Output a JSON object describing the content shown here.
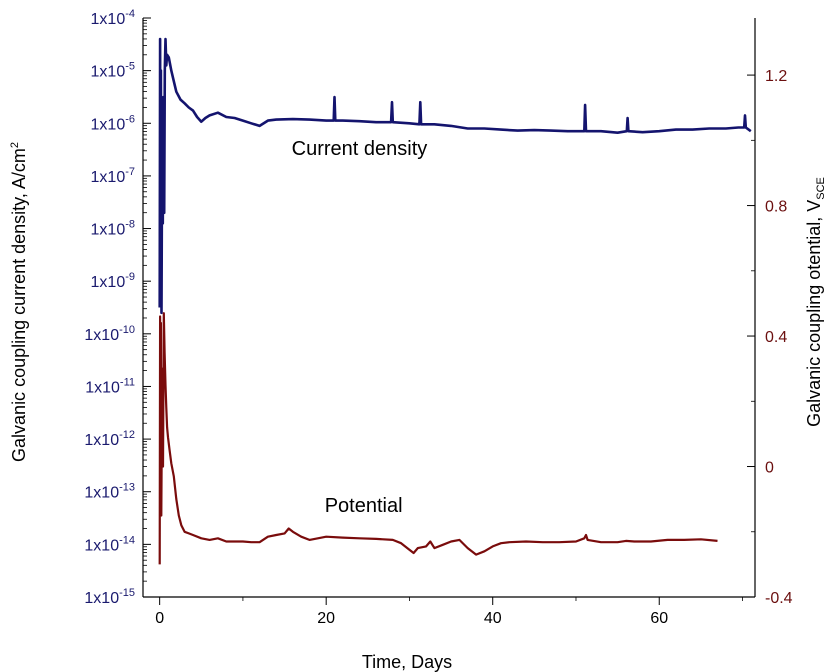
{
  "colors": {
    "current": "#14146e",
    "potential": "#7a0c0c",
    "axis": "#000000",
    "left_axis_text": "#1a1a6e",
    "right_axis_text": "#6b0f0f"
  },
  "chart_data": {
    "type": "line",
    "title": "",
    "xlabel": "Time, Days",
    "ylabel_left": {
      "main": "Galvanic coupling current density, A/cm",
      "sup": "2"
    },
    "ylabel_right": {
      "main": "Galvanic coupling otential, V",
      "sub": "SCE"
    },
    "xlim": [
      -2,
      71.5
    ],
    "x_ticks": [
      0,
      20,
      40,
      60
    ],
    "x_tick_labels": [
      "0",
      "20",
      "40",
      "60"
    ],
    "y_left_scale": "log",
    "y_left_lim_exp": [
      -15,
      -4
    ],
    "y_left_tick_exponents": [
      -4,
      -5,
      -6,
      -7,
      -8,
      -9,
      -10,
      -11,
      -12,
      -13,
      -14,
      -15
    ],
    "y_left_tick_base": "1x10",
    "y_right_lim": [
      -0.4,
      1.375
    ],
    "y_right_ticks": [
      1.2,
      0.8,
      0.4,
      0,
      -0.4
    ],
    "y_right_tick_labels": [
      "1.2",
      "0.8",
      "0.4",
      "0",
      "-0.4"
    ],
    "grid": false,
    "annotations": [
      {
        "text": "Current density",
        "x": 24,
        "y_exp": -6.6,
        "axis": "left"
      },
      {
        "text": "Potential",
        "x": 24.5,
        "y": -0.14,
        "axis": "right"
      }
    ],
    "series": [
      {
        "axis": "left",
        "units": "log10 of current density (A/cm2)",
        "points": [
          [
            0.0,
            -9.5
          ],
          [
            0.05,
            -4.4
          ],
          [
            0.1,
            -8.0
          ],
          [
            0.15,
            -5.0
          ],
          [
            0.22,
            -9.6
          ],
          [
            0.3,
            -6.0
          ],
          [
            0.38,
            -7.9
          ],
          [
            0.45,
            -5.5
          ],
          [
            0.55,
            -7.7
          ],
          [
            0.62,
            -5.0
          ],
          [
            0.7,
            -4.4
          ],
          [
            0.8,
            -4.9
          ],
          [
            0.9,
            -4.7
          ],
          [
            1.1,
            -4.75
          ],
          [
            1.4,
            -5.0
          ],
          [
            1.7,
            -5.2
          ],
          [
            2.0,
            -5.4
          ],
          [
            2.5,
            -5.55
          ],
          [
            3.0,
            -5.62
          ],
          [
            3.5,
            -5.7
          ],
          [
            4.0,
            -5.76
          ],
          [
            4.5,
            -5.88
          ],
          [
            5.0,
            -5.97
          ],
          [
            5.5,
            -5.9
          ],
          [
            6.0,
            -5.85
          ],
          [
            7.0,
            -5.8
          ],
          [
            8.0,
            -5.88
          ],
          [
            9.0,
            -5.9
          ],
          [
            10.0,
            -5.95
          ],
          [
            11.0,
            -6.0
          ],
          [
            12.0,
            -6.05
          ],
          [
            13.0,
            -5.95
          ],
          [
            14.0,
            -5.93
          ],
          [
            16.0,
            -5.92
          ],
          [
            18.0,
            -5.93
          ],
          [
            20.0,
            -5.95
          ],
          [
            20.9,
            -5.95
          ],
          [
            21.0,
            -5.5
          ],
          [
            21.1,
            -5.95
          ],
          [
            22.0,
            -5.95
          ],
          [
            24.0,
            -5.96
          ],
          [
            26.0,
            -5.98
          ],
          [
            27.8,
            -5.98
          ],
          [
            27.9,
            -5.6
          ],
          [
            28.0,
            -5.98
          ],
          [
            30.0,
            -6.0
          ],
          [
            31.2,
            -6.02
          ],
          [
            31.3,
            -5.6
          ],
          [
            31.4,
            -6.02
          ],
          [
            33.0,
            -6.02
          ],
          [
            35.0,
            -6.05
          ],
          [
            37.0,
            -6.1
          ],
          [
            39.0,
            -6.1
          ],
          [
            41.0,
            -6.12
          ],
          [
            43.0,
            -6.14
          ],
          [
            45.0,
            -6.13
          ],
          [
            47.0,
            -6.14
          ],
          [
            49.0,
            -6.15
          ],
          [
            51.0,
            -6.15
          ],
          [
            51.1,
            -5.65
          ],
          [
            51.2,
            -6.15
          ],
          [
            53.0,
            -6.15
          ],
          [
            55.0,
            -6.18
          ],
          [
            56.1,
            -6.15
          ],
          [
            56.2,
            -5.9
          ],
          [
            56.3,
            -6.15
          ],
          [
            58.0,
            -6.17
          ],
          [
            60.0,
            -6.15
          ],
          [
            62.0,
            -6.12
          ],
          [
            64.0,
            -6.12
          ],
          [
            66.0,
            -6.1
          ],
          [
            68.0,
            -6.1
          ],
          [
            69.5,
            -6.08
          ],
          [
            70.2,
            -6.08
          ],
          [
            70.3,
            -5.85
          ],
          [
            70.4,
            -6.08
          ],
          [
            71.0,
            -6.15
          ]
        ]
      },
      {
        "axis": "right",
        "units": "V vs SCE",
        "points": [
          [
            0.0,
            -0.3
          ],
          [
            0.05,
            0.46
          ],
          [
            0.1,
            0.0
          ],
          [
            0.15,
            0.44
          ],
          [
            0.2,
            -0.15
          ],
          [
            0.3,
            0.3
          ],
          [
            0.4,
            0.0
          ],
          [
            0.5,
            0.47
          ],
          [
            0.6,
            0.35
          ],
          [
            0.7,
            0.25
          ],
          [
            0.8,
            0.18
          ],
          [
            0.9,
            0.12
          ],
          [
            1.0,
            0.09
          ],
          [
            1.2,
            0.05
          ],
          [
            1.4,
            0.01
          ],
          [
            1.7,
            -0.03
          ],
          [
            2.0,
            -0.1
          ],
          [
            2.3,
            -0.15
          ],
          [
            2.6,
            -0.18
          ],
          [
            3.0,
            -0.2
          ],
          [
            3.5,
            -0.205
          ],
          [
            4.0,
            -0.21
          ],
          [
            5.0,
            -0.22
          ],
          [
            6.0,
            -0.225
          ],
          [
            7.0,
            -0.22
          ],
          [
            8.0,
            -0.23
          ],
          [
            9.0,
            -0.23
          ],
          [
            10.0,
            -0.23
          ],
          [
            11.0,
            -0.232
          ],
          [
            12.0,
            -0.232
          ],
          [
            13.0,
            -0.215
          ],
          [
            14.0,
            -0.21
          ],
          [
            15.0,
            -0.205
          ],
          [
            15.5,
            -0.19
          ],
          [
            16.0,
            -0.2
          ],
          [
            17.0,
            -0.215
          ],
          [
            18.0,
            -0.225
          ],
          [
            19.0,
            -0.22
          ],
          [
            20.0,
            -0.215
          ],
          [
            22.0,
            -0.218
          ],
          [
            24.0,
            -0.22
          ],
          [
            26.0,
            -0.222
          ],
          [
            28.0,
            -0.225
          ],
          [
            29.0,
            -0.235
          ],
          [
            30.0,
            -0.255
          ],
          [
            30.5,
            -0.265
          ],
          [
            31.0,
            -0.25
          ],
          [
            32.0,
            -0.245
          ],
          [
            32.5,
            -0.23
          ],
          [
            33.0,
            -0.25
          ],
          [
            34.0,
            -0.24
          ],
          [
            35.0,
            -0.23
          ],
          [
            36.0,
            -0.225
          ],
          [
            37.0,
            -0.25
          ],
          [
            38.0,
            -0.27
          ],
          [
            39.0,
            -0.26
          ],
          [
            40.0,
            -0.245
          ],
          [
            41.0,
            -0.235
          ],
          [
            42.0,
            -0.232
          ],
          [
            44.0,
            -0.23
          ],
          [
            46.0,
            -0.232
          ],
          [
            48.0,
            -0.232
          ],
          [
            50.0,
            -0.23
          ],
          [
            51.0,
            -0.22
          ],
          [
            51.2,
            -0.21
          ],
          [
            51.4,
            -0.225
          ],
          [
            53.0,
            -0.232
          ],
          [
            55.0,
            -0.232
          ],
          [
            56.0,
            -0.228
          ],
          [
            57.0,
            -0.23
          ],
          [
            59.0,
            -0.23
          ],
          [
            61.0,
            -0.225
          ],
          [
            63.0,
            -0.225
          ],
          [
            65.0,
            -0.223
          ],
          [
            67.0,
            -0.228
          ]
        ]
      }
    ]
  }
}
